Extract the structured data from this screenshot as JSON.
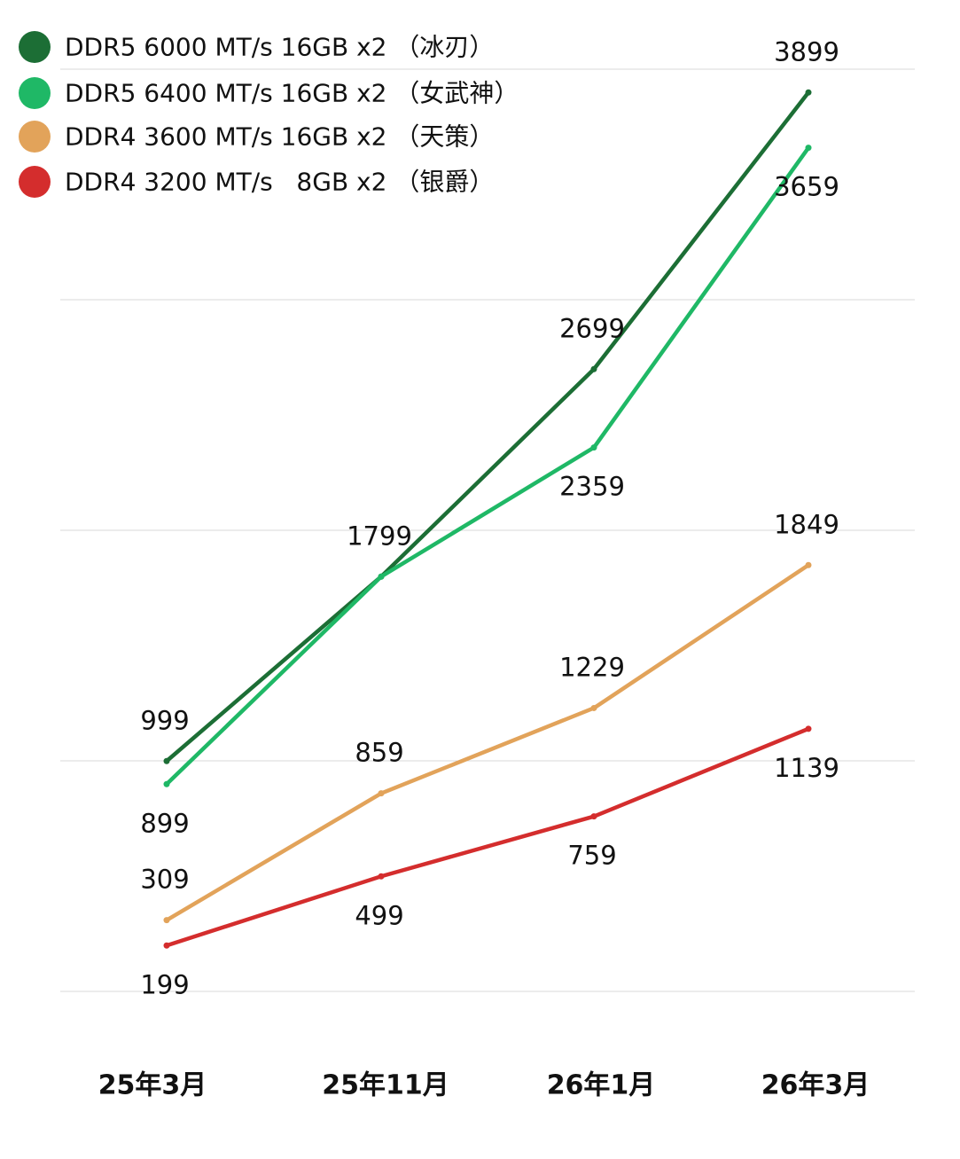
{
  "chart_data": {
    "type": "line",
    "categories": [
      "25年3月",
      "25年11月",
      "26年1月",
      "26年3月"
    ],
    "ylim": [
      0,
      4000
    ],
    "grid": true,
    "legend_position": "top-left",
    "series": [
      {
        "name": "DDR5 6000 MT/s 16GB x2 （冰刃）",
        "color": "#1c6e35",
        "values": [
          999,
          1799,
          2699,
          3899
        ],
        "labels": [
          "999",
          "1799",
          "2699",
          "3899"
        ],
        "label_side": [
          "above",
          "above",
          "above",
          "above"
        ]
      },
      {
        "name": "DDR5 6400 MT/s 16GB x2 （女武神）",
        "color": "#1fb866",
        "values": [
          899,
          1799,
          2359,
          3659
        ],
        "labels": [
          "899",
          "",
          "2359",
          "3659"
        ],
        "label_side": [
          "below",
          "below",
          "below",
          "below"
        ]
      },
      {
        "name": "DDR4 3600 MT/s 16GB x2 （天策）",
        "color": "#e2a35a",
        "values": [
          309,
          859,
          1229,
          1849
        ],
        "labels": [
          "309",
          "859",
          "1229",
          "1849"
        ],
        "label_side": [
          "above",
          "above",
          "above",
          "above"
        ]
      },
      {
        "name": "DDR4 3200 MT/s   8GB x2 （银爵）",
        "color": "#d42d2d",
        "values": [
          199,
          499,
          759,
          1139
        ],
        "labels": [
          "199",
          "499",
          "759",
          "1139"
        ],
        "label_side": [
          "below",
          "below",
          "below",
          "below"
        ]
      }
    ]
  }
}
